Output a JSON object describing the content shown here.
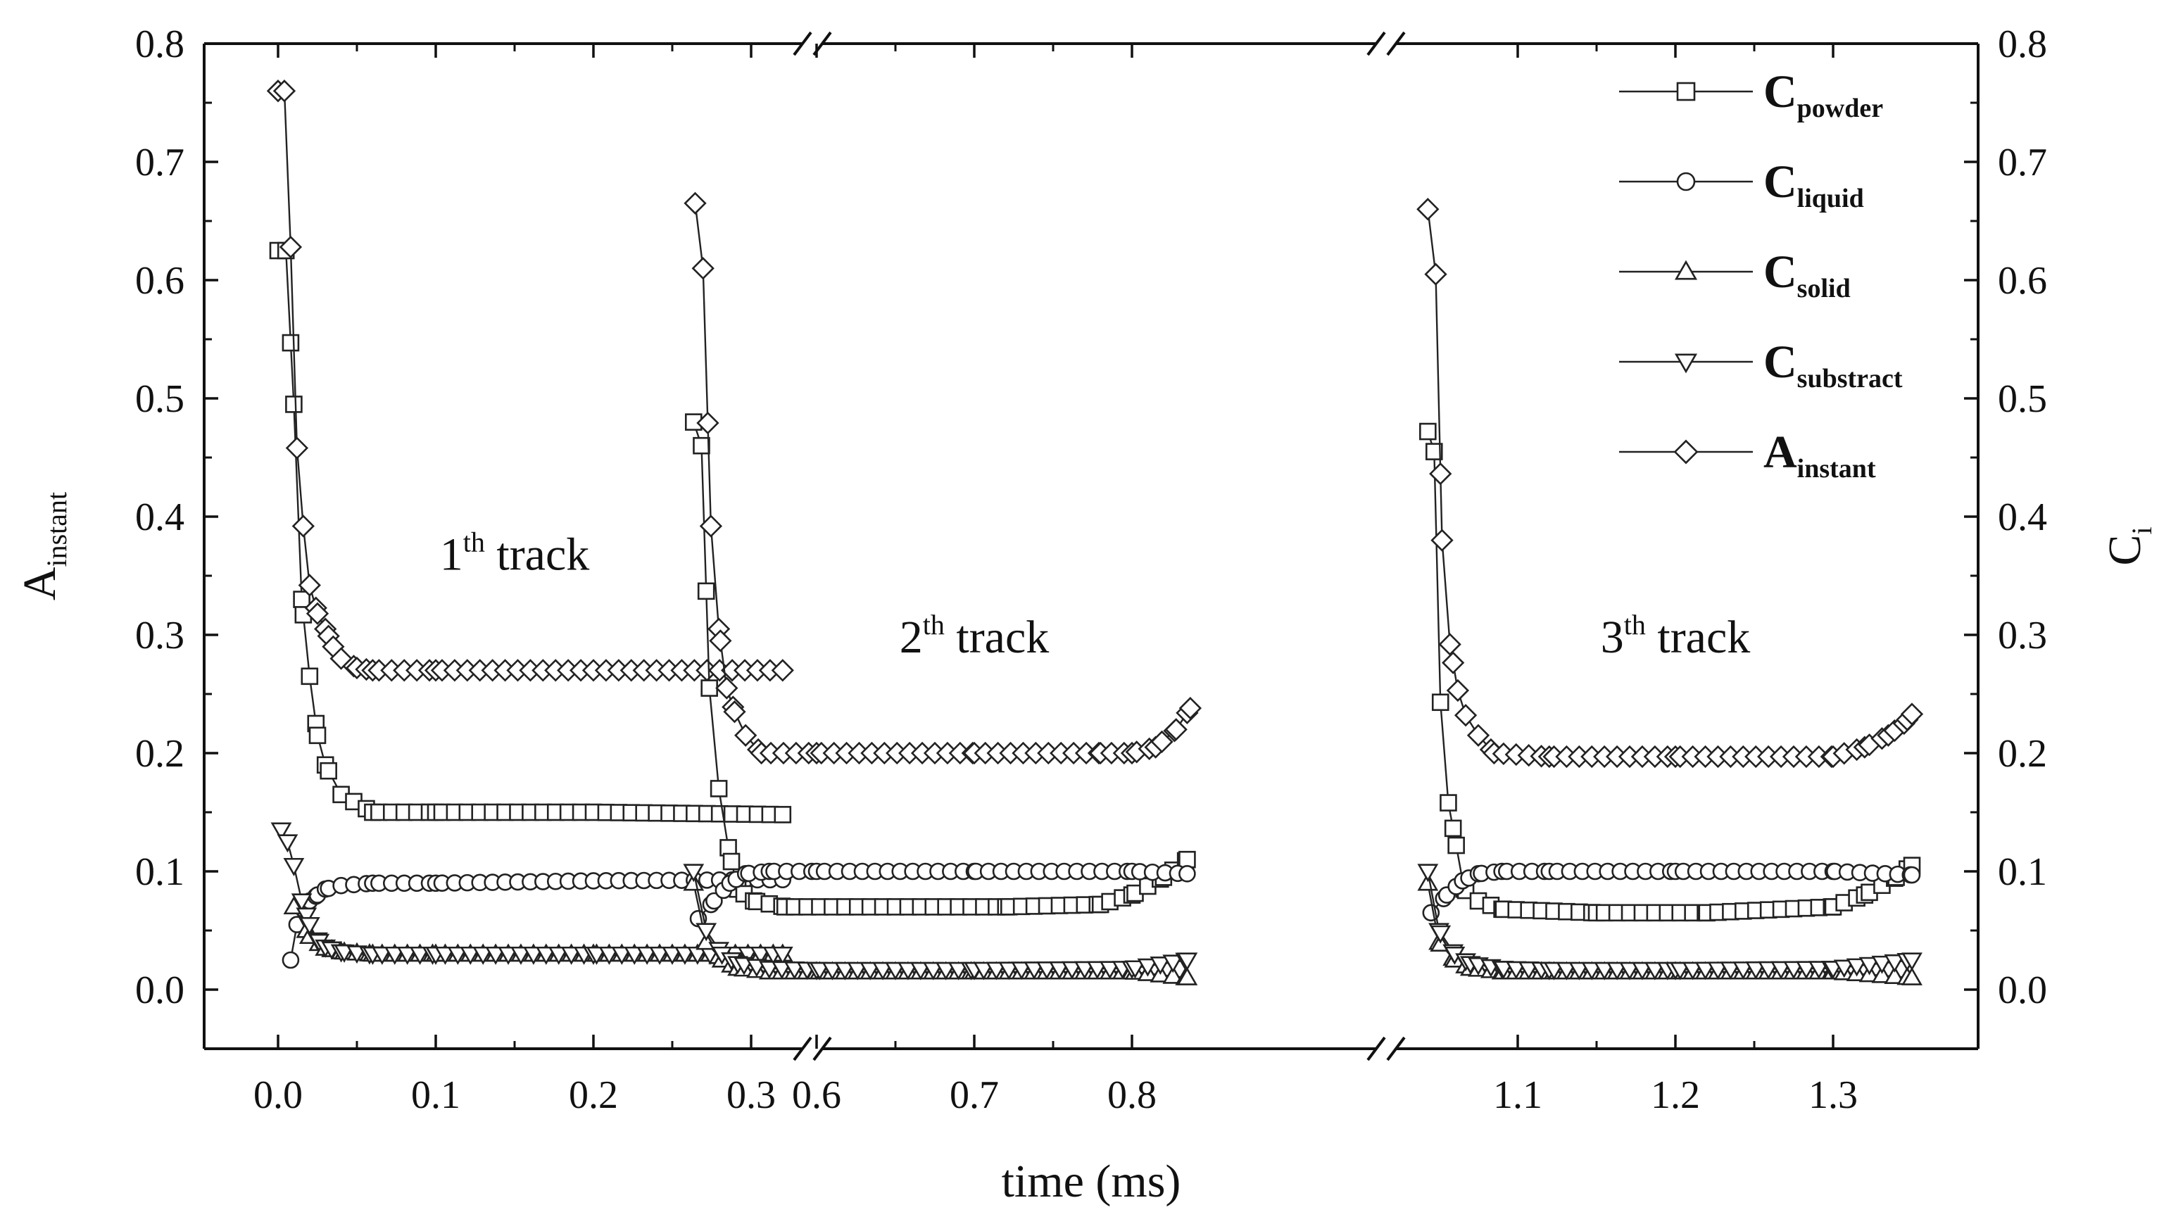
{
  "chart_data": {
    "type": "line",
    "xlabel": "time (ms)",
    "ylabel": {
      "main": "A",
      "sub": "instant"
    },
    "y2label": {
      "main": "C",
      "sub": "i"
    },
    "ylim": [
      -0.05,
      0.8
    ],
    "y2lim": [
      -0.05,
      0.8
    ],
    "y_ticks": [
      "0.0",
      "0.1",
      "0.2",
      "0.3",
      "0.4",
      "0.5",
      "0.6",
      "0.7",
      "0.8"
    ],
    "x_ticks": [
      "0.0",
      "0.1",
      "0.2",
      "0.3",
      "0.6",
      "0.7",
      "0.8",
      "1.1",
      "1.2",
      "1.3"
    ],
    "x_axis_breaks": [
      [
        0.32,
        0.52
      ],
      [
        0.84,
        1.04
      ]
    ],
    "grid": false,
    "legend_position": "top-right",
    "legend": [
      {
        "main": "C",
        "sub": "powder",
        "marker": "square"
      },
      {
        "main": "C",
        "sub": "liquid",
        "marker": "circle"
      },
      {
        "main": "C",
        "sub": "solid",
        "marker": "triangle-up"
      },
      {
        "main": "C",
        "sub": "substract",
        "marker": "triangle-down"
      },
      {
        "main": "A",
        "sub": "instant",
        "marker": "diamond"
      }
    ],
    "annotations": [
      {
        "main": "1",
        "sup": "th",
        "rest": " track",
        "x": 0.15,
        "y": 0.355
      },
      {
        "main": "2",
        "sup": "th",
        "rest": " track",
        "x": 0.7,
        "y": 0.285
      },
      {
        "main": "3",
        "sup": "th",
        "rest": " track",
        "x": 1.2,
        "y": 0.285
      }
    ],
    "tracks": [
      {
        "name": "1th track",
        "series": [
          {
            "name": "C_powder",
            "marker": "square",
            "x": [
              0.0,
              0.005,
              0.01,
              0.015,
              0.02,
              0.025,
              0.03,
              0.04,
              0.06,
              0.1,
              0.2,
              0.32
            ],
            "y": [
              0.625,
              0.625,
              0.495,
              0.33,
              0.265,
              0.215,
              0.19,
              0.165,
              0.15,
              0.15,
              0.15,
              0.148
            ]
          },
          {
            "name": "C_liquid",
            "marker": "circle",
            "x": [
              0.008,
              0.012,
              0.016,
              0.02,
              0.025,
              0.03,
              0.04,
              0.06,
              0.1,
              0.2,
              0.32
            ],
            "y": [
              0.025,
              0.055,
              0.068,
              0.075,
              0.08,
              0.085,
              0.088,
              0.09,
              0.09,
              0.092,
              0.093
            ]
          },
          {
            "name": "C_solid",
            "marker": "triangle-up",
            "x": [
              0.01,
              0.02,
              0.03,
              0.04,
              0.06,
              0.1,
              0.2,
              0.32
            ],
            "y": [
              0.07,
              0.045,
              0.035,
              0.032,
              0.03,
              0.03,
              0.03,
              0.03
            ]
          },
          {
            "name": "C_substract",
            "marker": "triangle-down",
            "x": [
              0.002,
              0.006,
              0.01,
              0.015,
              0.02,
              0.025,
              0.03,
              0.04,
              0.06,
              0.1,
              0.2,
              0.32
            ],
            "y": [
              0.135,
              0.125,
              0.105,
              0.075,
              0.055,
              0.042,
              0.036,
              0.032,
              0.03,
              0.03,
              0.03,
              0.03
            ]
          },
          {
            "name": "A_instant",
            "marker": "diamond",
            "x": [
              0.0,
              0.004,
              0.008,
              0.012,
              0.016,
              0.02,
              0.025,
              0.03,
              0.035,
              0.04,
              0.05,
              0.06,
              0.1,
              0.2,
              0.32
            ],
            "y": [
              0.76,
              0.76,
              0.628,
              0.458,
              0.392,
              0.342,
              0.318,
              0.305,
              0.29,
              0.28,
              0.272,
              0.27,
              0.27,
              0.27,
              0.27
            ]
          }
        ]
      },
      {
        "name": "2th track",
        "series": [
          {
            "name": "C_powder",
            "marker": "square",
            "x": [
              0.522,
              0.527,
              0.532,
              0.538,
              0.544,
              0.55,
              0.56,
              0.58,
              0.65,
              0.72,
              0.78,
              0.8,
              0.82,
              0.835
            ],
            "y": [
              0.48,
              0.46,
              0.255,
              0.17,
              0.12,
              0.085,
              0.075,
              0.07,
              0.07,
              0.07,
              0.072,
              0.08,
              0.095,
              0.11
            ]
          },
          {
            "name": "C_liquid",
            "marker": "circle",
            "x": [
              0.525,
              0.535,
              0.545,
              0.555,
              0.57,
              0.6,
              0.7,
              0.8,
              0.835
            ],
            "y": [
              0.06,
              0.075,
              0.09,
              0.098,
              0.1,
              0.1,
              0.1,
              0.1,
              0.098
            ]
          },
          {
            "name": "C_solid",
            "marker": "triangle-up",
            "x": [
              0.522,
              0.53,
              0.54,
              0.55,
              0.57,
              0.6,
              0.7,
              0.8,
              0.835
            ],
            "y": [
              0.09,
              0.04,
              0.025,
              0.018,
              0.015,
              0.015,
              0.015,
              0.015,
              0.01
            ]
          },
          {
            "name": "C_substract",
            "marker": "triangle-down",
            "x": [
              0.522,
              0.53,
              0.54,
              0.55,
              0.57,
              0.6,
              0.7,
              0.8,
              0.835
            ],
            "y": [
              0.1,
              0.05,
              0.03,
              0.022,
              0.018,
              0.017,
              0.017,
              0.018,
              0.025
            ]
          },
          {
            "name": "A_instant",
            "marker": "diamond",
            "x": [
              0.523,
              0.528,
              0.533,
              0.538,
              0.543,
              0.548,
              0.555,
              0.565,
              0.6,
              0.7,
              0.78,
              0.8,
              0.815,
              0.828,
              0.837
            ],
            "y": [
              0.665,
              0.61,
              0.392,
              0.305,
              0.255,
              0.235,
              0.215,
              0.2,
              0.2,
              0.2,
              0.2,
              0.2,
              0.205,
              0.22,
              0.238
            ]
          }
        ]
      },
      {
        "name": "3th track",
        "series": [
          {
            "name": "C_powder",
            "marker": "square",
            "x": [
              1.043,
              1.047,
              1.051,
              1.056,
              1.061,
              1.066,
              1.075,
              1.09,
              1.15,
              1.22,
              1.3,
              1.32,
              1.34,
              1.35
            ],
            "y": [
              0.472,
              0.455,
              0.243,
              0.158,
              0.122,
              0.085,
              0.075,
              0.068,
              0.065,
              0.065,
              0.07,
              0.08,
              0.095,
              0.105
            ]
          },
          {
            "name": "C_liquid",
            "marker": "circle",
            "x": [
              1.045,
              1.055,
              1.065,
              1.075,
              1.09,
              1.12,
              1.2,
              1.3,
              1.35
            ],
            "y": [
              0.065,
              0.08,
              0.092,
              0.098,
              0.1,
              0.1,
              0.1,
              0.1,
              0.097
            ]
          },
          {
            "name": "C_solid",
            "marker": "triangle-up",
            "x": [
              1.043,
              1.05,
              1.06,
              1.07,
              1.09,
              1.12,
              1.2,
              1.3,
              1.35
            ],
            "y": [
              0.09,
              0.04,
              0.025,
              0.018,
              0.015,
              0.015,
              0.015,
              0.015,
              0.01
            ]
          },
          {
            "name": "C_substract",
            "marker": "triangle-down",
            "x": [
              1.043,
              1.05,
              1.06,
              1.07,
              1.09,
              1.12,
              1.2,
              1.3,
              1.35
            ],
            "y": [
              0.1,
              0.05,
              0.03,
              0.022,
              0.018,
              0.017,
              0.017,
              0.018,
              0.025
            ]
          },
          {
            "name": "A_instant",
            "marker": "diamond",
            "x": [
              1.043,
              1.048,
              1.052,
              1.057,
              1.062,
              1.067,
              1.075,
              1.085,
              1.12,
              1.2,
              1.3,
              1.32,
              1.335,
              1.345,
              1.35
            ],
            "y": [
              0.66,
              0.605,
              0.38,
              0.292,
              0.253,
              0.232,
              0.215,
              0.2,
              0.197,
              0.197,
              0.197,
              0.205,
              0.215,
              0.225,
              0.233
            ]
          }
        ]
      }
    ]
  }
}
